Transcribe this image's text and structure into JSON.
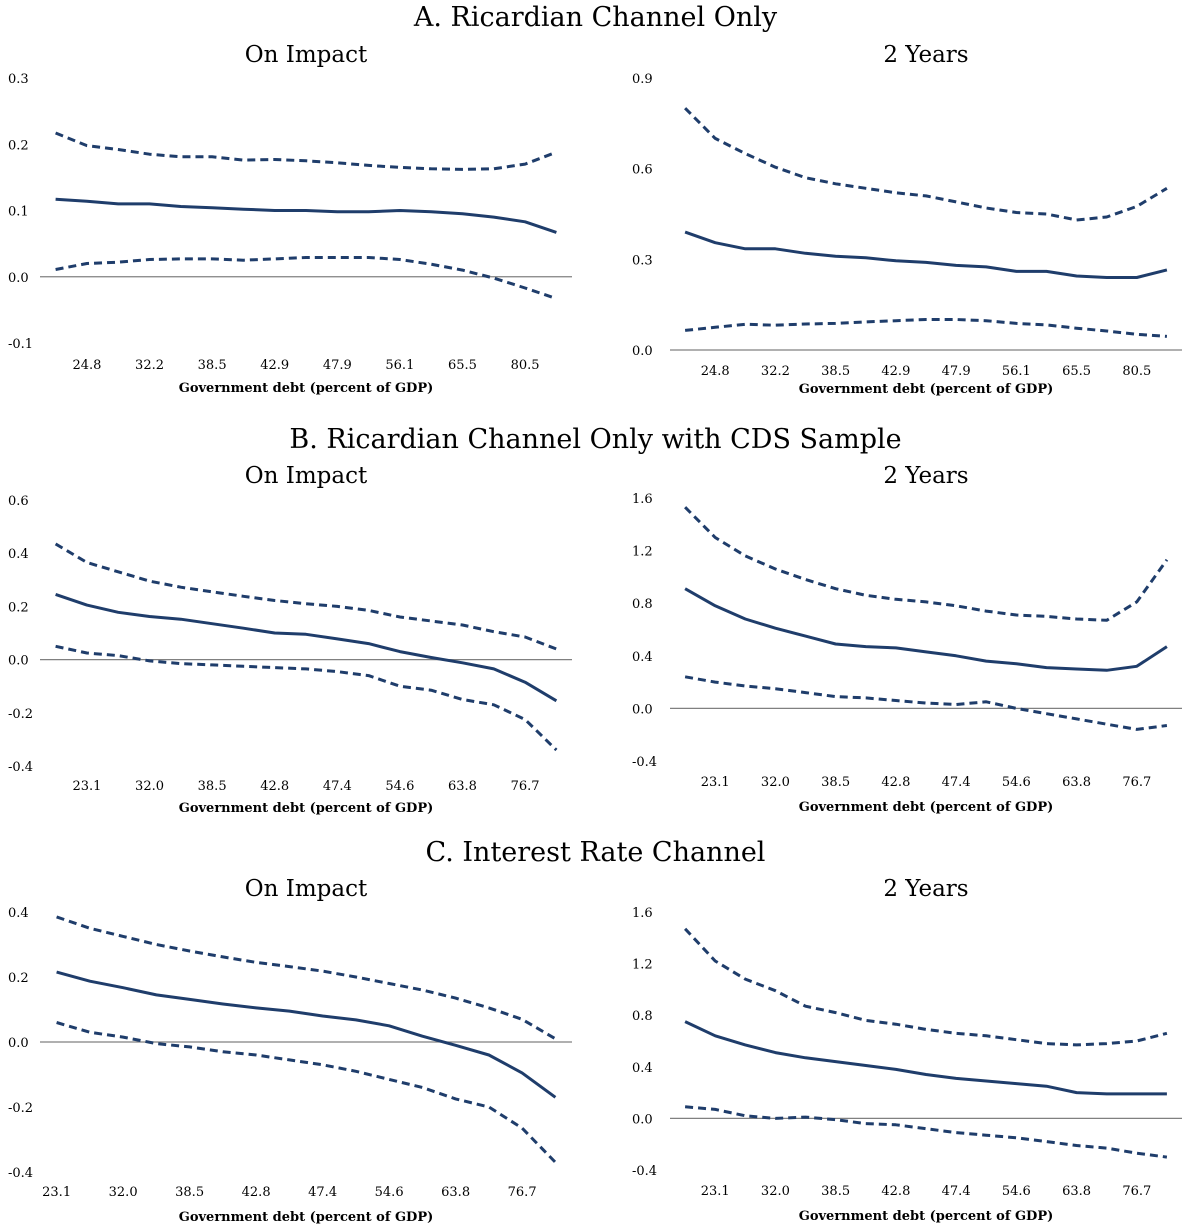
{
  "panels": [
    {
      "title": "A. Ricardian Channel Only"
    },
    {
      "title": "B. Ricardian Channel Only with CDS Sample"
    },
    {
      "title": "C. Interest Rate Channel"
    }
  ],
  "colors": {
    "series": "#1f3d6b",
    "zero_line": "#808080"
  },
  "chart_data": [
    {
      "type": "line",
      "panel": 0,
      "title": "On Impact",
      "xlabel": "Government debt (percent of GDP)",
      "ylabel": "",
      "ylim": [
        -0.1,
        0.3
      ],
      "yticks": [
        -0.1,
        0.0,
        0.1,
        0.2,
        0.3
      ],
      "ytick_decimals": 1,
      "x": [
        1,
        2,
        3,
        4,
        5,
        6,
        7,
        8,
        9,
        10,
        11,
        12,
        13,
        14,
        15,
        16,
        17
      ],
      "xticks": [
        {
          "x": 2,
          "label": "24.8"
        },
        {
          "x": 4,
          "label": "32.2"
        },
        {
          "x": 6,
          "label": "38.5"
        },
        {
          "x": 8,
          "label": "42.9"
        },
        {
          "x": 10,
          "label": "47.9"
        },
        {
          "x": 12,
          "label": "56.1"
        },
        {
          "x": 14,
          "label": "65.5"
        },
        {
          "x": 16,
          "label": "80.5"
        }
      ],
      "xrange": [
        0.5,
        17.5
      ],
      "series": [
        {
          "style": "solid",
          "values": [
            0.117,
            0.114,
            0.11,
            0.11,
            0.106,
            0.104,
            0.102,
            0.1,
            0.1,
            0.098,
            0.098,
            0.1,
            0.098,
            0.095,
            0.09,
            0.083,
            0.067
          ]
        },
        {
          "style": "dashed",
          "values": [
            0.217,
            0.198,
            0.192,
            0.185,
            0.181,
            0.181,
            0.176,
            0.177,
            0.175,
            0.172,
            0.168,
            0.165,
            0.163,
            0.162,
            0.163,
            0.17,
            0.188
          ]
        },
        {
          "style": "dashed",
          "values": [
            0.011,
            0.02,
            0.022,
            0.026,
            0.027,
            0.027,
            0.025,
            0.027,
            0.029,
            0.029,
            0.029,
            0.026,
            0.019,
            0.01,
            -0.002,
            -0.017,
            -0.033
          ]
        }
      ]
    },
    {
      "type": "line",
      "panel": 0,
      "title": "2 Years",
      "xlabel": "Government debt (percent of GDP)",
      "ylabel": "",
      "ylim": [
        0.0,
        0.9
      ],
      "yticks": [
        0.0,
        0.3,
        0.6,
        0.9
      ],
      "ytick_decimals": 1,
      "x": [
        1,
        2,
        3,
        4,
        5,
        6,
        7,
        8,
        9,
        10,
        11,
        12,
        13,
        14,
        15,
        16,
        17
      ],
      "xticks": [
        {
          "x": 2,
          "label": "24.8"
        },
        {
          "x": 4,
          "label": "32.2"
        },
        {
          "x": 6,
          "label": "38.5"
        },
        {
          "x": 8,
          "label": "42.9"
        },
        {
          "x": 10,
          "label": "47.9"
        },
        {
          "x": 12,
          "label": "56.1"
        },
        {
          "x": 14,
          "label": "65.5"
        },
        {
          "x": 16,
          "label": "80.5"
        }
      ],
      "xrange": [
        0.5,
        17.5
      ],
      "series": [
        {
          "style": "solid",
          "values": [
            0.39,
            0.355,
            0.335,
            0.335,
            0.32,
            0.31,
            0.305,
            0.295,
            0.29,
            0.28,
            0.275,
            0.26,
            0.26,
            0.245,
            0.24,
            0.24,
            0.265
          ]
        },
        {
          "style": "dashed",
          "values": [
            0.8,
            0.7,
            0.65,
            0.605,
            0.57,
            0.55,
            0.535,
            0.52,
            0.51,
            0.49,
            0.47,
            0.455,
            0.45,
            0.43,
            0.44,
            0.475,
            0.535
          ]
        },
        {
          "style": "dashed",
          "values": [
            0.065,
            0.075,
            0.085,
            0.082,
            0.086,
            0.088,
            0.093,
            0.097,
            0.101,
            0.101,
            0.097,
            0.088,
            0.083,
            0.072,
            0.063,
            0.052,
            0.045
          ]
        }
      ]
    },
    {
      "type": "line",
      "panel": 1,
      "title": "On Impact",
      "xlabel": "Government debt (percent of GDP)",
      "ylabel": "",
      "ylim": [
        -0.4,
        0.6
      ],
      "yticks": [
        -0.4,
        -0.2,
        0.0,
        0.2,
        0.4,
        0.6
      ],
      "ytick_decimals": 1,
      "x": [
        1,
        2,
        3,
        4,
        5,
        6,
        7,
        8,
        9,
        10,
        11,
        12,
        13,
        14,
        15,
        16,
        17
      ],
      "xticks": [
        {
          "x": 2,
          "label": "23.1"
        },
        {
          "x": 4,
          "label": "32.0"
        },
        {
          "x": 6,
          "label": "38.5"
        },
        {
          "x": 8,
          "label": "42.8"
        },
        {
          "x": 10,
          "label": "47.4"
        },
        {
          "x": 12,
          "label": "54.6"
        },
        {
          "x": 14,
          "label": "63.8"
        },
        {
          "x": 16,
          "label": "76.7"
        }
      ],
      "xrange": [
        0.5,
        17.5
      ],
      "series": [
        {
          "style": "solid",
          "values": [
            0.245,
            0.205,
            0.178,
            0.162,
            0.152,
            0.135,
            0.118,
            0.1,
            0.095,
            0.078,
            0.06,
            0.03,
            0.008,
            -0.012,
            -0.035,
            -0.085,
            -0.155
          ]
        },
        {
          "style": "dashed",
          "values": [
            0.435,
            0.365,
            0.33,
            0.295,
            0.272,
            0.255,
            0.238,
            0.222,
            0.21,
            0.2,
            0.185,
            0.16,
            0.145,
            0.13,
            0.105,
            0.085,
            0.04
          ]
        },
        {
          "style": "dashed",
          "values": [
            0.05,
            0.025,
            0.015,
            -0.005,
            -0.015,
            -0.02,
            -0.025,
            -0.03,
            -0.035,
            -0.045,
            -0.06,
            -0.1,
            -0.115,
            -0.15,
            -0.17,
            -0.225,
            -0.34
          ]
        }
      ]
    },
    {
      "type": "line",
      "panel": 1,
      "title": "2 Years",
      "xlabel": "Government debt (percent of GDP)",
      "ylabel": "",
      "ylim": [
        -0.4,
        1.6
      ],
      "yticks": [
        -0.4,
        0.0,
        0.4,
        0.8,
        1.2,
        1.6
      ],
      "ytick_decimals": 1,
      "x": [
        1,
        2,
        3,
        4,
        5,
        6,
        7,
        8,
        9,
        10,
        11,
        12,
        13,
        14,
        15,
        16,
        17
      ],
      "xticks": [
        {
          "x": 2,
          "label": "23.1"
        },
        {
          "x": 4,
          "label": "32.0"
        },
        {
          "x": 6,
          "label": "38.5"
        },
        {
          "x": 8,
          "label": "42.8"
        },
        {
          "x": 10,
          "label": "47.4"
        },
        {
          "x": 12,
          "label": "54.6"
        },
        {
          "x": 14,
          "label": "63.8"
        },
        {
          "x": 16,
          "label": "76.7"
        }
      ],
      "xrange": [
        0.5,
        17.5
      ],
      "series": [
        {
          "style": "solid",
          "values": [
            0.91,
            0.78,
            0.68,
            0.61,
            0.55,
            0.49,
            0.47,
            0.46,
            0.43,
            0.4,
            0.36,
            0.34,
            0.31,
            0.3,
            0.29,
            0.32,
            0.47
          ]
        },
        {
          "style": "dashed",
          "values": [
            1.53,
            1.3,
            1.16,
            1.06,
            0.98,
            0.91,
            0.86,
            0.83,
            0.81,
            0.78,
            0.74,
            0.71,
            0.7,
            0.68,
            0.67,
            0.81,
            1.13
          ]
        },
        {
          "style": "dashed",
          "values": [
            0.24,
            0.2,
            0.17,
            0.15,
            0.12,
            0.09,
            0.08,
            0.06,
            0.04,
            0.03,
            0.05,
            0.0,
            -0.04,
            -0.08,
            -0.12,
            -0.16,
            -0.13
          ]
        }
      ]
    },
    {
      "type": "line",
      "panel": 2,
      "title": "On Impact",
      "xlabel": "Government debt (percent of GDP)",
      "ylabel": "",
      "ylim": [
        -0.4,
        0.4
      ],
      "yticks": [
        -0.4,
        -0.2,
        0.0,
        0.2,
        0.4
      ],
      "ytick_decimals": 1,
      "x": [
        1,
        2,
        3,
        4,
        5,
        6,
        7,
        8,
        9,
        10,
        11,
        12,
        13,
        14,
        15,
        16
      ],
      "xticks": [
        {
          "x": 1,
          "label": "23.1"
        },
        {
          "x": 3,
          "label": "32.0"
        },
        {
          "x": 5,
          "label": "38.5"
        },
        {
          "x": 7,
          "label": "42.8"
        },
        {
          "x": 9,
          "label": "47.4"
        },
        {
          "x": 11,
          "label": "54.6"
        },
        {
          "x": 13,
          "label": "63.8"
        },
        {
          "x": 15,
          "label": "76.7"
        }
      ],
      "xrange": [
        0.5,
        16.5
      ],
      "series": [
        {
          "style": "solid",
          "values": [
            0.215,
            0.187,
            0.167,
            0.145,
            0.131,
            0.117,
            0.105,
            0.095,
            0.08,
            0.068,
            0.05,
            0.018,
            -0.01,
            -0.04,
            -0.095,
            -0.17
          ]
        },
        {
          "style": "dashed",
          "values": [
            0.385,
            0.35,
            0.325,
            0.3,
            0.28,
            0.262,
            0.245,
            0.232,
            0.218,
            0.2,
            0.18,
            0.16,
            0.135,
            0.105,
            0.07,
            0.01
          ]
        },
        {
          "style": "dashed",
          "values": [
            0.06,
            0.03,
            0.015,
            -0.005,
            -0.015,
            -0.03,
            -0.04,
            -0.055,
            -0.07,
            -0.09,
            -0.115,
            -0.14,
            -0.175,
            -0.2,
            -0.265,
            -0.37
          ]
        }
      ]
    },
    {
      "type": "line",
      "panel": 2,
      "title": "2 Years",
      "xlabel": "Government debt (percent of GDP)",
      "ylabel": "",
      "ylim": [
        -0.4,
        1.6
      ],
      "yticks": [
        -0.4,
        0.0,
        0.4,
        0.8,
        1.2,
        1.6
      ],
      "ytick_decimals": 1,
      "x": [
        1,
        2,
        3,
        4,
        5,
        6,
        7,
        8,
        9,
        10,
        11,
        12,
        13,
        14,
        15,
        16,
        17
      ],
      "xticks": [
        {
          "x": 2,
          "label": "23.1"
        },
        {
          "x": 4,
          "label": "32.0"
        },
        {
          "x": 6,
          "label": "38.5"
        },
        {
          "x": 8,
          "label": "42.8"
        },
        {
          "x": 10,
          "label": "47.4"
        },
        {
          "x": 12,
          "label": "54.6"
        },
        {
          "x": 14,
          "label": "63.8"
        },
        {
          "x": 16,
          "label": "76.7"
        }
      ],
      "xrange": [
        0.5,
        17.5
      ],
      "series": [
        {
          "style": "solid",
          "values": [
            0.75,
            0.64,
            0.57,
            0.51,
            0.47,
            0.44,
            0.41,
            0.38,
            0.34,
            0.31,
            0.29,
            0.27,
            0.25,
            0.2,
            0.19,
            0.19,
            0.19
          ]
        },
        {
          "style": "dashed",
          "values": [
            1.47,
            1.22,
            1.08,
            0.99,
            0.87,
            0.82,
            0.76,
            0.73,
            0.69,
            0.66,
            0.64,
            0.61,
            0.58,
            0.57,
            0.58,
            0.6,
            0.66
          ]
        },
        {
          "style": "dashed",
          "values": [
            0.09,
            0.07,
            0.02,
            0.0,
            0.01,
            -0.01,
            -0.04,
            -0.05,
            -0.08,
            -0.11,
            -0.13,
            -0.15,
            -0.18,
            -0.21,
            -0.23,
            -0.27,
            -0.3
          ]
        }
      ]
    }
  ]
}
